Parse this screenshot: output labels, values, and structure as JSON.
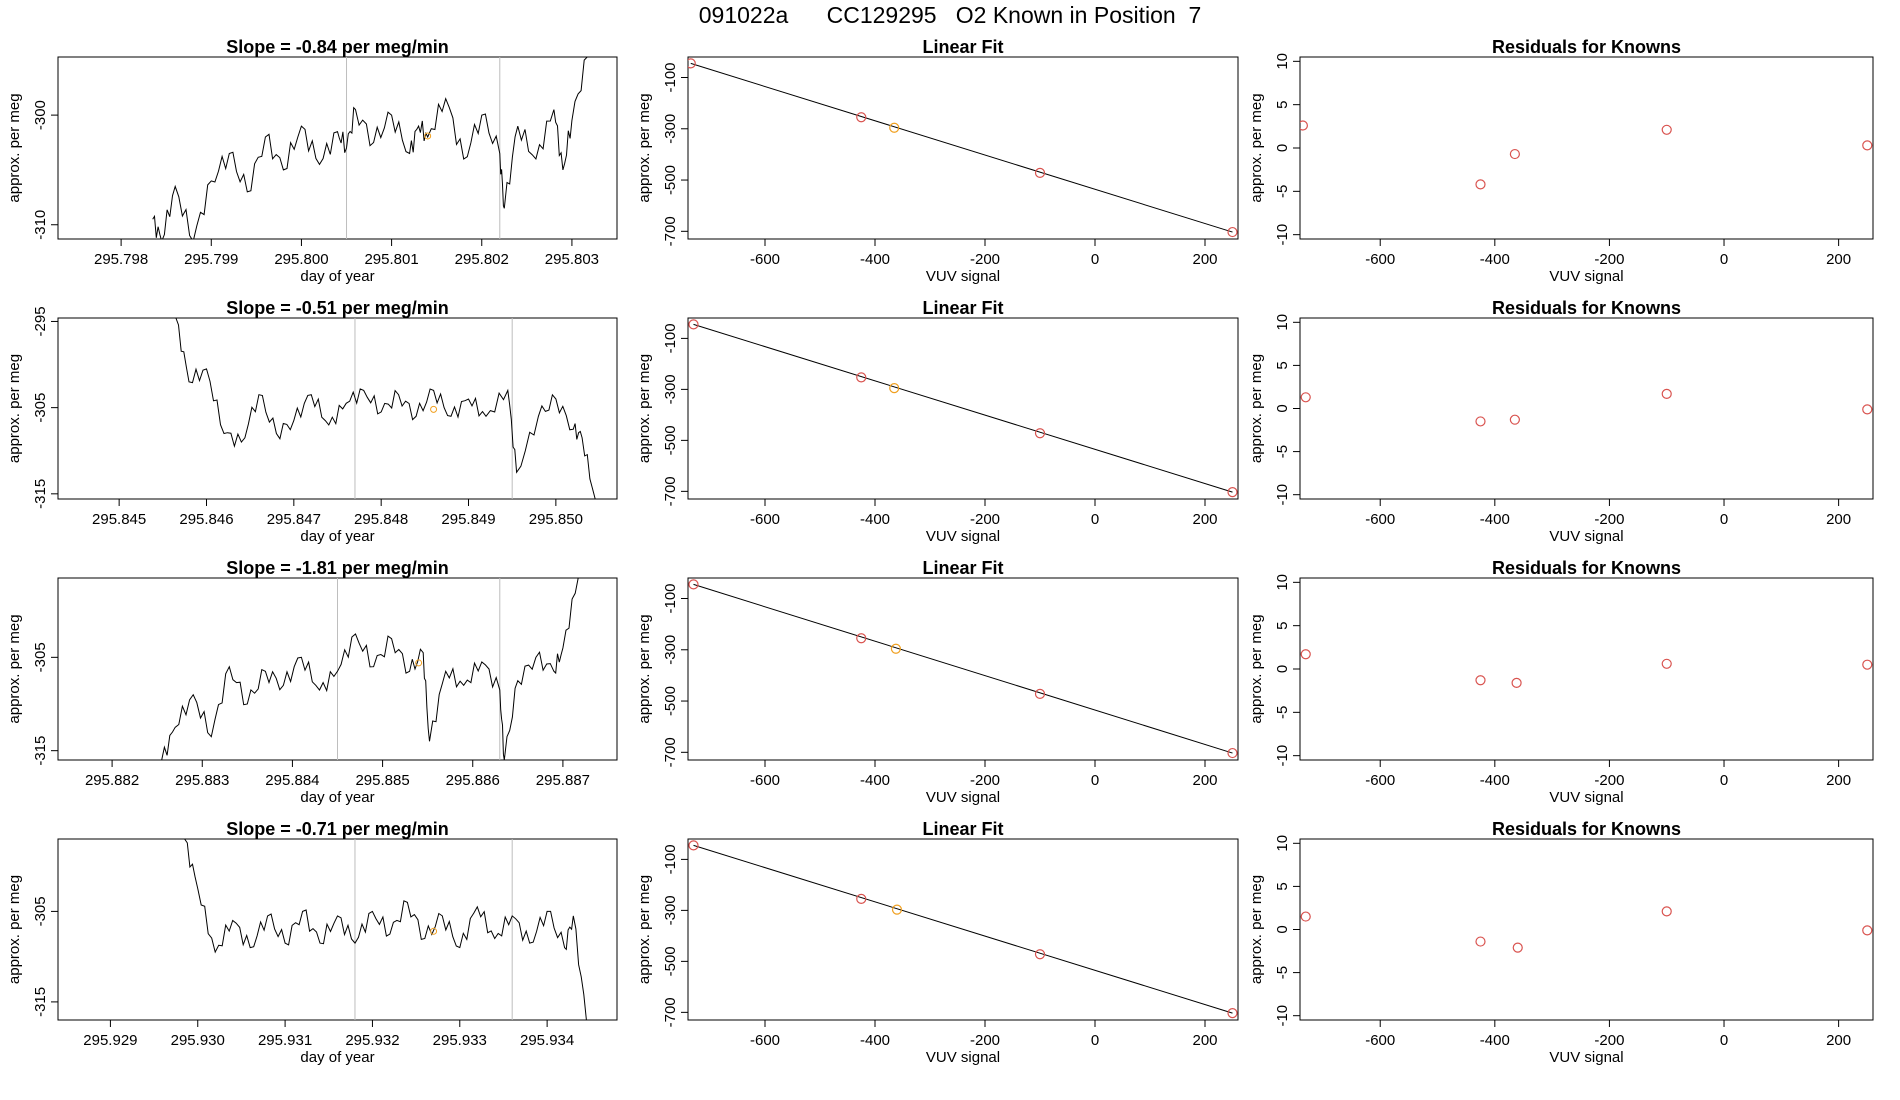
{
  "page": {
    "title": "091022a      CC129295   O2 Known in Position  7"
  },
  "colors": {
    "line": "#000000",
    "vline": "#bebebe",
    "point_red": "#d9534f",
    "point_orange": "#f0a020",
    "fit_line": "#000000"
  },
  "chart_data": [
    {
      "type": "line",
      "row": 1,
      "panel": "timeseries",
      "title": "Slope =  -0.84  per meg/min",
      "xlabel": "day of year",
      "ylabel": "approx. per meg",
      "xlim": [
        295.7973,
        295.8035
      ],
      "ylim": [
        -311.3,
        -294.7
      ],
      "xticks": [
        "295.798",
        "295.799",
        "295.800",
        "295.801",
        "295.802",
        "295.803"
      ],
      "yticks": [
        "-310",
        "-300"
      ],
      "vlines": [
        295.8005,
        295.8022
      ],
      "x_start": 295.79835,
      "x_end": 295.80317,
      "points": [
        [
          295.79835,
          -309.5
        ],
        [
          295.79845,
          -311.5
        ],
        [
          295.7986,
          -306.5
        ],
        [
          295.7988,
          -311.5
        ],
        [
          295.799,
          -306
        ],
        [
          295.7992,
          -303.5
        ],
        [
          295.7994,
          -307
        ],
        [
          295.7996,
          -302
        ],
        [
          295.7998,
          -305
        ],
        [
          295.8,
          -301
        ],
        [
          295.8002,
          -304.5
        ],
        [
          295.8004,
          -301.5
        ],
        [
          295.8005,
          -303
        ],
        [
          295.8006,
          -299.5
        ],
        [
          295.8008,
          -302.5
        ],
        [
          295.801,
          -300
        ],
        [
          295.8012,
          -303.5
        ],
        [
          295.8013,
          -301
        ],
        [
          295.8014,
          -302
        ],
        [
          295.8016,
          -298.5
        ],
        [
          295.8018,
          -304
        ],
        [
          295.802,
          -300
        ],
        [
          295.8022,
          -303.5
        ],
        [
          295.80225,
          -308.5
        ],
        [
          295.8024,
          -301
        ],
        [
          295.8026,
          -304
        ],
        [
          295.8028,
          -299.5
        ],
        [
          295.8029,
          -305
        ],
        [
          295.803,
          -300.5
        ],
        [
          295.80317,
          -294.7
        ]
      ],
      "highlight": {
        "x": 295.8014,
        "y": -301.9,
        "color": "orange"
      }
    },
    {
      "type": "scatter",
      "row": 1,
      "panel": "fit",
      "title": "Linear Fit",
      "xlabel": "VUV signal",
      "ylabel": "approx. per meg",
      "xlim": [
        -740,
        260
      ],
      "ylim": [
        -730,
        -20
      ],
      "xticks": [
        "-600",
        "-400",
        "-200",
        "0",
        "200"
      ],
      "yticks": [
        "-100",
        "-300",
        "-500",
        "-700"
      ],
      "line": {
        "x": [
          -735,
          250
        ],
        "y": [
          -45,
          -703
        ]
      },
      "points": [
        {
          "x": -735,
          "y": -45,
          "c": "red"
        },
        {
          "x": -425,
          "y": -255,
          "c": "red"
        },
        {
          "x": -365,
          "y": -296,
          "c": "orange"
        },
        {
          "x": -100,
          "y": -472,
          "c": "red"
        },
        {
          "x": 250,
          "y": -703,
          "c": "red"
        }
      ]
    },
    {
      "type": "scatter",
      "row": 1,
      "panel": "residuals",
      "title": "Residuals for Knowns",
      "xlabel": "VUV signal",
      "ylabel": "approx. per meg",
      "xlim": [
        -740,
        260
      ],
      "ylim": [
        -10.5,
        10.5
      ],
      "xticks": [
        "-600",
        "-400",
        "-200",
        "0",
        "200"
      ],
      "yticks": [
        "10",
        "5",
        "0",
        "-5",
        "-10"
      ],
      "points": [
        {
          "x": -735,
          "y": 2.6
        },
        {
          "x": -425,
          "y": -4.2
        },
        {
          "x": -365,
          "y": -0.7
        },
        {
          "x": -100,
          "y": 2.1
        },
        {
          "x": 250,
          "y": 0.3
        }
      ]
    },
    {
      "type": "line",
      "row": 2,
      "panel": "timeseries",
      "title": "Slope =  -0.51  per meg/min",
      "xlabel": "day of year",
      "ylabel": "approx. per meg",
      "xlim": [
        295.8443,
        295.8507
      ],
      "ylim": [
        -315.6,
        -294.6
      ],
      "xticks": [
        "295.845",
        "295.846",
        "295.847",
        "295.848",
        "295.849",
        "295.850"
      ],
      "yticks": [
        "-315",
        "-305",
        "-295"
      ],
      "vlines": [
        295.8477,
        295.8495
      ],
      "x_start": 295.84565,
      "x_end": 295.85045,
      "points": [
        [
          295.84565,
          -294.6
        ],
        [
          295.8458,
          -302
        ],
        [
          295.846,
          -300.5
        ],
        [
          295.8462,
          -308
        ],
        [
          295.8464,
          -309
        ],
        [
          295.8466,
          -303.5
        ],
        [
          295.8468,
          -308
        ],
        [
          295.847,
          -306.5
        ],
        [
          295.8472,
          -303.5
        ],
        [
          295.8474,
          -307
        ],
        [
          295.8476,
          -304.5
        ],
        [
          295.8478,
          -303
        ],
        [
          295.848,
          -305.5
        ],
        [
          295.8482,
          -303.5
        ],
        [
          295.8484,
          -306
        ],
        [
          295.8486,
          -303
        ],
        [
          295.8488,
          -306
        ],
        [
          295.849,
          -304
        ],
        [
          295.8492,
          -306
        ],
        [
          295.84945,
          -303
        ],
        [
          295.84955,
          -312.5
        ],
        [
          295.8498,
          -306
        ],
        [
          295.85,
          -304
        ],
        [
          295.8502,
          -307.5
        ],
        [
          295.8503,
          -308.5
        ],
        [
          295.85045,
          -315.6
        ]
      ],
      "highlight": {
        "x": 295.8486,
        "y": -305.2,
        "color": "orange"
      }
    },
    {
      "type": "scatter",
      "row": 2,
      "panel": "fit",
      "title": "Linear Fit",
      "xlabel": "VUV signal",
      "ylabel": "approx. per meg",
      "xlim": [
        -740,
        260
      ],
      "ylim": [
        -730,
        -20
      ],
      "xticks": [
        "-600",
        "-400",
        "-200",
        "0",
        "200"
      ],
      "yticks": [
        "-100",
        "-300",
        "-500",
        "-700"
      ],
      "line": {
        "x": [
          -730,
          250
        ],
        "y": [
          -45,
          -703
        ]
      },
      "points": [
        {
          "x": -730,
          "y": -45,
          "c": "red"
        },
        {
          "x": -425,
          "y": -253,
          "c": "red"
        },
        {
          "x": -365,
          "y": -295,
          "c": "orange"
        },
        {
          "x": -100,
          "y": -472,
          "c": "red"
        },
        {
          "x": 250,
          "y": -703,
          "c": "red"
        }
      ]
    },
    {
      "type": "scatter",
      "row": 2,
      "panel": "residuals",
      "title": "Residuals for Knowns",
      "xlabel": "VUV signal",
      "ylabel": "approx. per meg",
      "xlim": [
        -740,
        260
      ],
      "ylim": [
        -10.5,
        10.5
      ],
      "xticks": [
        "-600",
        "-400",
        "-200",
        "0",
        "200"
      ],
      "yticks": [
        "10",
        "5",
        "0",
        "-5",
        "-10"
      ],
      "points": [
        {
          "x": -730,
          "y": 1.3
        },
        {
          "x": -425,
          "y": -1.5
        },
        {
          "x": -365,
          "y": -1.3
        },
        {
          "x": -100,
          "y": 1.7
        },
        {
          "x": 250,
          "y": -0.1
        }
      ]
    },
    {
      "type": "line",
      "row": 3,
      "panel": "timeseries",
      "title": "Slope =  -1.81  per meg/min",
      "xlabel": "day of year",
      "ylabel": "approx. per meg",
      "xlim": [
        295.8814,
        295.8876
      ],
      "ylim": [
        -316,
        -296.5
      ],
      "xticks": [
        "295.882",
        "295.883",
        "295.884",
        "295.885",
        "295.886",
        "295.887"
      ],
      "yticks": [
        "-315",
        "-305"
      ],
      "vlines": [
        295.8845,
        295.8863
      ],
      "x_start": 295.88255,
      "x_end": 295.88717,
      "points": [
        [
          295.88255,
          -316
        ],
        [
          295.8827,
          -312.5
        ],
        [
          295.8829,
          -309
        ],
        [
          295.8831,
          -313.5
        ],
        [
          295.8833,
          -306
        ],
        [
          295.8835,
          -310
        ],
        [
          295.8837,
          -306.5
        ],
        [
          295.8839,
          -308
        ],
        [
          295.8841,
          -305
        ],
        [
          295.8843,
          -308.5
        ],
        [
          295.8845,
          -306.5
        ],
        [
          295.8847,
          -302.5
        ],
        [
          295.8849,
          -306
        ],
        [
          295.8851,
          -303
        ],
        [
          295.8853,
          -306.5
        ],
        [
          295.88545,
          -304.5
        ],
        [
          295.88552,
          -314
        ],
        [
          295.8857,
          -306.5
        ],
        [
          295.8859,
          -308
        ],
        [
          295.8861,
          -305.5
        ],
        [
          295.8863,
          -308.5
        ],
        [
          295.88635,
          -316
        ],
        [
          295.8865,
          -307.5
        ],
        [
          295.8867,
          -305
        ],
        [
          295.8869,
          -306.5
        ],
        [
          295.887,
          -304
        ],
        [
          295.88717,
          -296.5
        ]
      ],
      "highlight": {
        "x": 295.8854,
        "y": -305.6,
        "color": "orange"
      }
    },
    {
      "type": "scatter",
      "row": 3,
      "panel": "fit",
      "title": "Linear Fit",
      "xlabel": "VUV signal",
      "ylabel": "approx. per meg",
      "xlim": [
        -740,
        260
      ],
      "ylim": [
        -730,
        -20
      ],
      "xticks": [
        "-600",
        "-400",
        "-200",
        "0",
        "200"
      ],
      "yticks": [
        "-100",
        "-300",
        "-500",
        "-700"
      ],
      "line": {
        "x": [
          -730,
          250
        ],
        "y": [
          -45,
          -703
        ]
      },
      "points": [
        {
          "x": -730,
          "y": -45,
          "c": "red"
        },
        {
          "x": -425,
          "y": -255,
          "c": "red"
        },
        {
          "x": -362,
          "y": -296,
          "c": "orange"
        },
        {
          "x": -100,
          "y": -472,
          "c": "red"
        },
        {
          "x": 250,
          "y": -703,
          "c": "red"
        }
      ]
    },
    {
      "type": "scatter",
      "row": 3,
      "panel": "residuals",
      "title": "Residuals for Knowns",
      "xlabel": "VUV signal",
      "ylabel": "approx. per meg",
      "xlim": [
        -740,
        260
      ],
      "ylim": [
        -10.5,
        10.5
      ],
      "xticks": [
        "-600",
        "-400",
        "-200",
        "0",
        "200"
      ],
      "yticks": [
        "10",
        "5",
        "0",
        "-5",
        "-10"
      ],
      "points": [
        {
          "x": -730,
          "y": 1.7
        },
        {
          "x": -425,
          "y": -1.3
        },
        {
          "x": -362,
          "y": -1.6
        },
        {
          "x": -100,
          "y": 0.6
        },
        {
          "x": 250,
          "y": 0.5
        }
      ]
    },
    {
      "type": "line",
      "row": 4,
      "panel": "timeseries",
      "title": "Slope =  -0.71  per meg/min",
      "xlabel": "day of year",
      "ylabel": "approx. per meg",
      "xlim": [
        295.9284,
        295.9348
      ],
      "ylim": [
        -317,
        -297
      ],
      "xticks": [
        "295.929",
        "295.930",
        "295.931",
        "295.932",
        "295.933",
        "295.934"
      ],
      "yticks": [
        "-315",
        "-305"
      ],
      "vlines": [
        295.9318,
        295.9336
      ],
      "x_start": 295.92985,
      "x_end": 295.93445,
      "points": [
        [
          295.92985,
          -297
        ],
        [
          295.93,
          -302.5
        ],
        [
          295.9302,
          -309.5
        ],
        [
          295.9304,
          -306
        ],
        [
          295.9306,
          -309
        ],
        [
          295.9308,
          -305.5
        ],
        [
          295.931,
          -308.5
        ],
        [
          295.9312,
          -305
        ],
        [
          295.9314,
          -308.5
        ],
        [
          295.9316,
          -305.5
        ],
        [
          295.9318,
          -308.5
        ],
        [
          295.932,
          -305
        ],
        [
          295.9322,
          -307.5
        ],
        [
          295.9324,
          -304
        ],
        [
          295.9326,
          -308
        ],
        [
          295.9328,
          -305.5
        ],
        [
          295.933,
          -309
        ],
        [
          295.9332,
          -304.5
        ],
        [
          295.9334,
          -308
        ],
        [
          295.9336,
          -305.5
        ],
        [
          295.9338,
          -308.5
        ],
        [
          295.934,
          -305
        ],
        [
          295.9342,
          -309
        ],
        [
          295.9343,
          -305.5
        ],
        [
          295.93445,
          -317
        ]
      ],
      "highlight": {
        "x": 295.9327,
        "y": -307.2,
        "color": "orange"
      }
    },
    {
      "type": "scatter",
      "row": 4,
      "panel": "fit",
      "title": "Linear Fit",
      "xlabel": "VUV signal",
      "ylabel": "approx. per meg",
      "xlim": [
        -740,
        260
      ],
      "ylim": [
        -730,
        -20
      ],
      "xticks": [
        "-600",
        "-400",
        "-200",
        "0",
        "200"
      ],
      "yticks": [
        "-100",
        "-300",
        "-500",
        "-700"
      ],
      "line": {
        "x": [
          -730,
          250
        ],
        "y": [
          -45,
          -703
        ]
      },
      "points": [
        {
          "x": -730,
          "y": -45,
          "c": "red"
        },
        {
          "x": -425,
          "y": -255,
          "c": "red"
        },
        {
          "x": -360,
          "y": -297,
          "c": "orange"
        },
        {
          "x": -100,
          "y": -472,
          "c": "red"
        },
        {
          "x": 250,
          "y": -703,
          "c": "red"
        }
      ]
    },
    {
      "type": "scatter",
      "row": 4,
      "panel": "residuals",
      "title": "Residuals for Knowns",
      "xlabel": "VUV signal",
      "ylabel": "approx. per meg",
      "xlim": [
        -740,
        260
      ],
      "ylim": [
        -10.5,
        10.5
      ],
      "xticks": [
        "-600",
        "-400",
        "-200",
        "0",
        "200"
      ],
      "yticks": [
        "10",
        "5",
        "0",
        "-5",
        "-10"
      ],
      "points": [
        {
          "x": -730,
          "y": 1.5
        },
        {
          "x": -425,
          "y": -1.4
        },
        {
          "x": -360,
          "y": -2.1
        },
        {
          "x": -100,
          "y": 2.1
        },
        {
          "x": 250,
          "y": -0.1
        }
      ]
    }
  ]
}
